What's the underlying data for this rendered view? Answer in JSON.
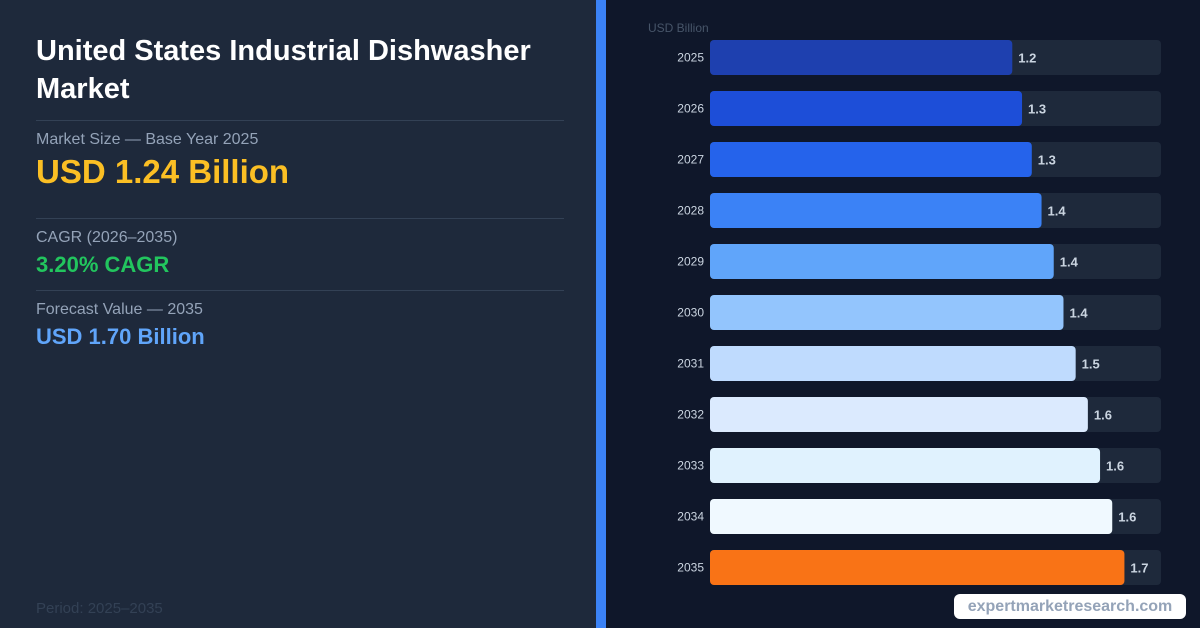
{
  "summary": {
    "title": "United States Industrial Dishwasher Market",
    "market_size_label": "Market Size — Base Year 2025",
    "market_size_value": "USD 1.24 Billion",
    "cagr_label": "CAGR (2026–2035)",
    "cagr_value": "3.20% CAGR",
    "forecast_label": "Forecast Value — 2035",
    "forecast_value": "USD 1.70 Billion",
    "period": "Period: 2025–2035"
  },
  "watermark": "expertmarketresearch.com",
  "colors": {
    "left_panel": "#1e293b",
    "accent_bar": "#3b82f6",
    "background": "#0f172a",
    "track": "#1e293b",
    "highlight": "#f97316"
  },
  "chart_data": {
    "type": "bar",
    "orientation": "horizontal",
    "unit_label": "USD Billion",
    "categories": [
      "2025",
      "2026",
      "2027",
      "2028",
      "2029",
      "2030",
      "2031",
      "2032",
      "2033",
      "2034",
      "2035"
    ],
    "values": [
      1.24,
      1.28,
      1.32,
      1.36,
      1.41,
      1.45,
      1.5,
      1.55,
      1.6,
      1.65,
      1.7
    ],
    "data_labels": [
      "1.2",
      "1.3",
      "1.3",
      "1.4",
      "1.4",
      "1.4",
      "1.5",
      "1.6",
      "1.6",
      "1.6",
      "1.7"
    ],
    "bar_colors": [
      "#1e40af",
      "#1d4ed8",
      "#2563eb",
      "#3b82f6",
      "#60a5fa",
      "#93c5fd",
      "#bfdbfe",
      "#dbeafe",
      "#e0f2fe",
      "#f0f9ff",
      "#f97316"
    ],
    "xlim": [
      0,
      1.85
    ],
    "grid": false,
    "legend": "none"
  }
}
